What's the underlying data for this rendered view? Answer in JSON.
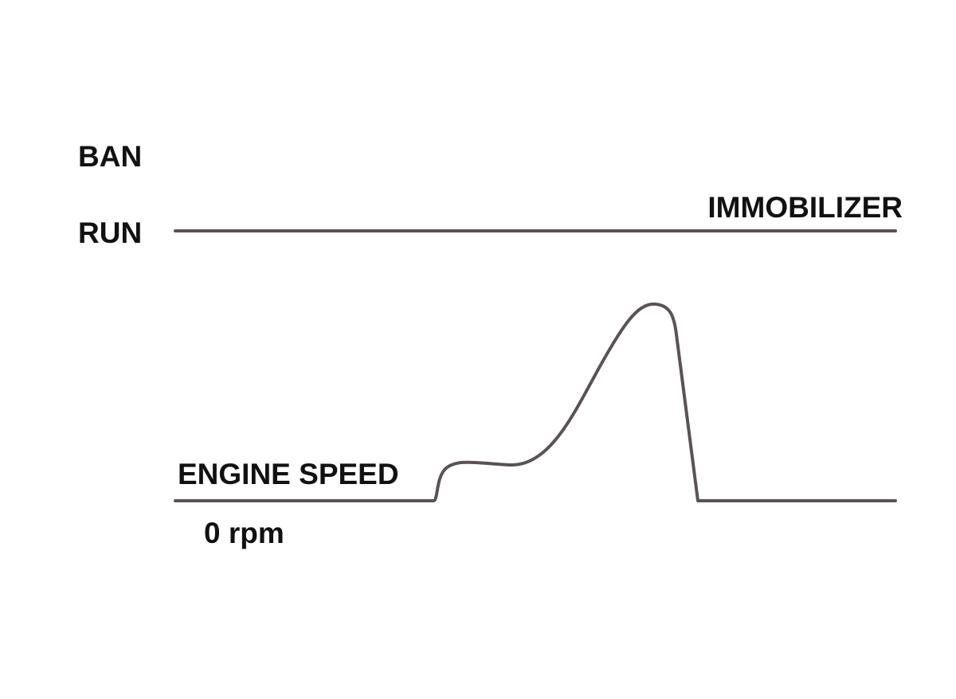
{
  "immobilizer": {
    "label": "IMMOBILIZER",
    "states": [
      "BAN",
      "RUN"
    ]
  },
  "engine_speed": {
    "label": "ENGINE SPEED",
    "baseline": "0 rpm"
  }
}
